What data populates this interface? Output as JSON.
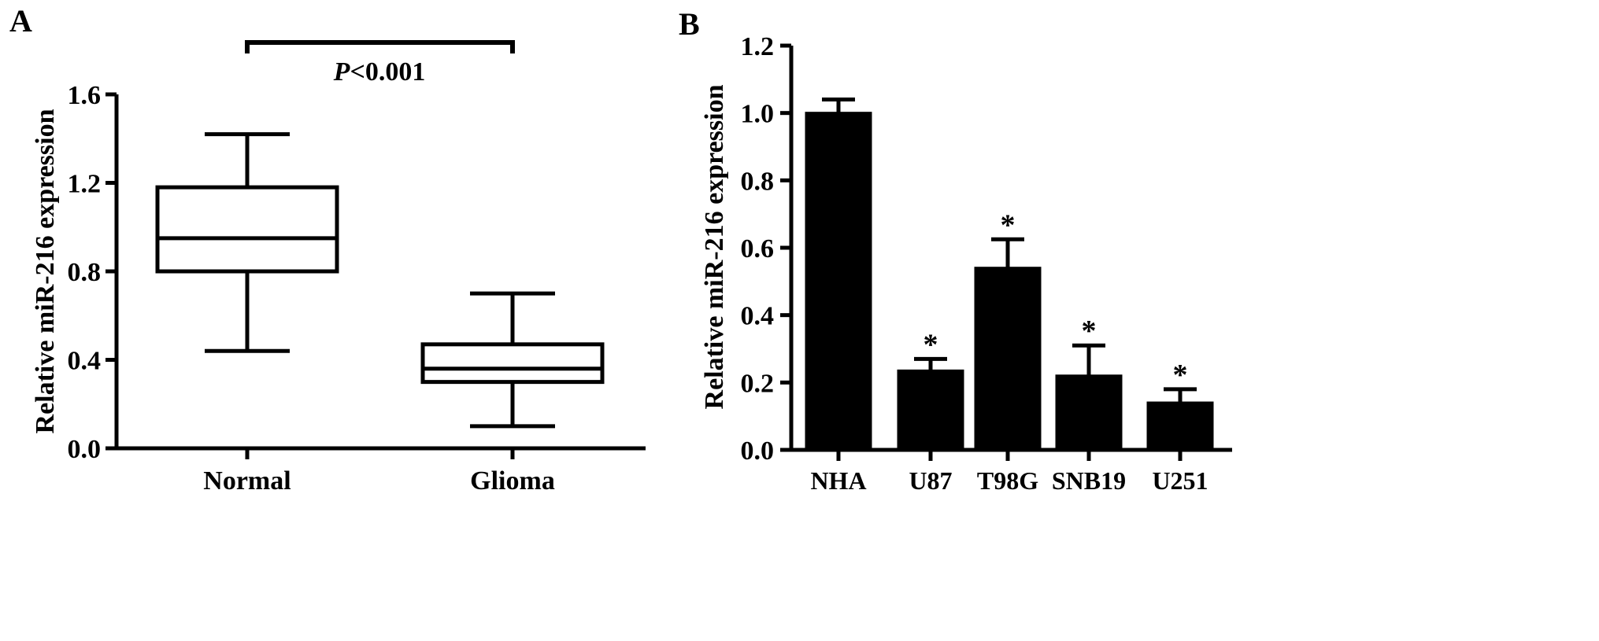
{
  "chart_data": [
    {
      "panel_label": "A",
      "type": "box",
      "ylabel": "Relative miR-216 expression",
      "xlabel": "",
      "ylim": [
        0.0,
        1.6
      ],
      "yticks": [
        "0.0",
        "0.4",
        "0.8",
        "1.2",
        "1.6"
      ],
      "categories": [
        "Normal",
        "Glioma"
      ],
      "boxes": [
        {
          "category": "Normal",
          "min": 0.44,
          "q1": 0.8,
          "median": 0.95,
          "q3": 1.18,
          "max": 1.42
        },
        {
          "category": "Glioma",
          "min": 0.1,
          "q1": 0.3,
          "median": 0.36,
          "q3": 0.47,
          "max": 0.7
        }
      ],
      "annotation": {
        "prefix": "P",
        "text": "<0.001"
      }
    },
    {
      "panel_label": "B",
      "type": "bar",
      "ylabel": "Relative miR-216 expression",
      "xlabel": "",
      "ylim": [
        0.0,
        1.2
      ],
      "yticks": [
        "0.0",
        "0.2",
        "0.4",
        "0.6",
        "0.8",
        "1.0",
        "1.2"
      ],
      "categories": [
        "NHA",
        "U87",
        "T98G",
        "SNB19",
        "U251"
      ],
      "values": [
        1.0,
        0.235,
        0.54,
        0.22,
        0.14
      ],
      "errors": [
        0.04,
        0.035,
        0.085,
        0.09,
        0.04
      ],
      "significance": [
        "",
        "*",
        "*",
        "*",
        "*"
      ]
    }
  ]
}
